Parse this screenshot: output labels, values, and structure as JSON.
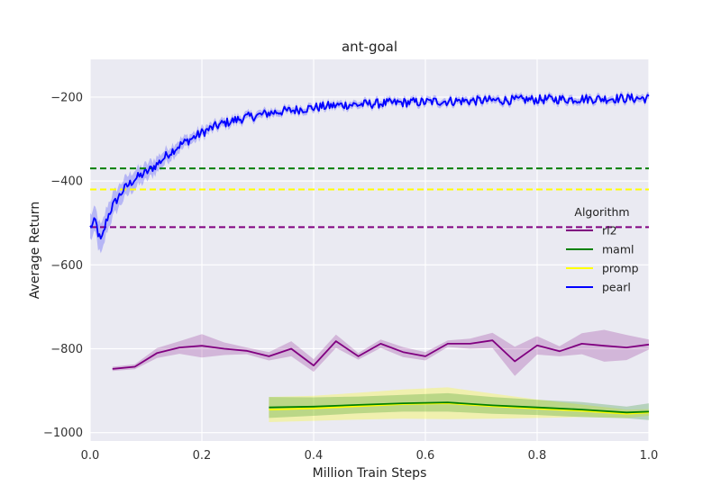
{
  "chart_data": {
    "type": "line",
    "title": "ant-goal",
    "xlabel": "Million Train Steps",
    "ylabel": "Average Return",
    "xlim": [
      0.0,
      1.0
    ],
    "ylim": [
      -1020,
      -110
    ],
    "xticks": [
      0.0,
      0.2,
      0.4,
      0.6,
      0.8,
      1.0
    ],
    "xtick_labels": [
      "0.0",
      "0.2",
      "0.4",
      "0.6",
      "0.8",
      "1.0"
    ],
    "yticks": [
      -1000,
      -800,
      -600,
      -400,
      -200
    ],
    "ytick_labels": [
      "−1000",
      "−800",
      "−600",
      "−400",
      "−200"
    ],
    "grid": true,
    "background": "#EAEAF2",
    "legend": {
      "title": "Algorithm",
      "placement": "right",
      "entries": [
        "rl2",
        "maml",
        "promp",
        "pearl"
      ]
    },
    "hlines": [
      {
        "name": "rl2",
        "y": -510,
        "color": "#800080",
        "style": "dashed"
      },
      {
        "name": "maml",
        "y": -370,
        "color": "#008000",
        "style": "dashed"
      },
      {
        "name": "promp",
        "y": -420,
        "color": "#FFFF00",
        "style": "dashed"
      }
    ],
    "series": [
      {
        "name": "rl2",
        "color": "#800080",
        "x": [
          0.04,
          0.08,
          0.12,
          0.16,
          0.2,
          0.24,
          0.28,
          0.32,
          0.36,
          0.4,
          0.44,
          0.48,
          0.52,
          0.56,
          0.6,
          0.64,
          0.68,
          0.72,
          0.76,
          0.8,
          0.84,
          0.88,
          0.92,
          0.96,
          1.0
        ],
        "y": [
          -848,
          -843,
          -810,
          -797,
          -793,
          -800,
          -805,
          -818,
          -800,
          -840,
          -782,
          -818,
          -788,
          -808,
          -818,
          -788,
          -788,
          -780,
          -830,
          -792,
          -806,
          -788,
          -793,
          -797,
          -790
        ],
        "band_half_width": [
          5,
          6,
          12,
          15,
          28,
          15,
          8,
          10,
          18,
          15,
          16,
          8,
          10,
          12,
          10,
          8,
          12,
          18,
          35,
          22,
          12,
          25,
          38,
          30,
          12
        ]
      },
      {
        "name": "maml",
        "color": "#008000",
        "x": [
          0.32,
          0.4,
          0.48,
          0.56,
          0.64,
          0.72,
          0.8,
          0.88,
          0.96,
          1.0
        ],
        "y": [
          -940,
          -938,
          -934,
          -930,
          -928,
          -935,
          -940,
          -945,
          -952,
          -950
        ],
        "band_half_width": [
          25,
          22,
          20,
          20,
          22,
          20,
          18,
          18,
          14,
          20
        ]
      },
      {
        "name": "promp",
        "color": "#FFFF00",
        "x": [
          0.32,
          0.4,
          0.48,
          0.56,
          0.64,
          0.72,
          0.8,
          0.88,
          0.96,
          1.0
        ],
        "y": [
          -945,
          -942,
          -937,
          -932,
          -930,
          -937,
          -943,
          -948,
          -955,
          -952
        ],
        "band_half_width": [
          30,
          30,
          32,
          35,
          38,
          30,
          22,
          15,
          10,
          8
        ]
      },
      {
        "name": "pearl",
        "color": "#0000FF",
        "x": [
          0.0,
          0.01,
          0.015,
          0.02,
          0.03,
          0.04,
          0.05,
          0.06,
          0.08,
          0.1,
          0.12,
          0.14,
          0.16,
          0.18,
          0.2,
          0.22,
          0.24,
          0.26,
          0.28,
          0.3,
          0.32,
          0.34,
          0.36,
          0.38,
          0.4,
          0.42,
          0.44,
          0.46,
          0.48,
          0.5,
          0.52,
          0.54,
          0.56,
          0.58,
          0.6,
          0.62,
          0.64,
          0.66,
          0.68,
          0.7,
          0.72,
          0.74,
          0.76,
          0.78,
          0.8,
          0.82,
          0.84,
          0.86,
          0.88,
          0.9,
          0.92,
          0.94,
          0.96,
          0.98,
          1.0
        ],
        "y": [
          -510,
          -495,
          -530,
          -545,
          -490,
          -460,
          -440,
          -420,
          -395,
          -380,
          -360,
          -335,
          -315,
          -300,
          -285,
          -272,
          -262,
          -255,
          -248,
          -244,
          -238,
          -234,
          -232,
          -228,
          -225,
          -222,
          -220,
          -218,
          -218,
          -216,
          -215,
          -214,
          -213,
          -212,
          -212,
          -210,
          -210,
          -209,
          -209,
          -208,
          -208,
          -207,
          -207,
          -206,
          -206,
          -205,
          -205,
          -205,
          -204,
          -204,
          -204,
          -203,
          -203,
          -203,
          -203
        ],
        "band_half_width": [
          30,
          30,
          35,
          35,
          30,
          28,
          26,
          24,
          22,
          20,
          18,
          16,
          14,
          12,
          12,
          10,
          10,
          10,
          9,
          9,
          9,
          8,
          8,
          8,
          8,
          8,
          8,
          8,
          8,
          8,
          8,
          8,
          8,
          8,
          8,
          8,
          8,
          8,
          8,
          8,
          8,
          8,
          8,
          8,
          8,
          8,
          8,
          8,
          8,
          8,
          8,
          8,
          8,
          8,
          8
        ],
        "noise": 11
      }
    ]
  }
}
